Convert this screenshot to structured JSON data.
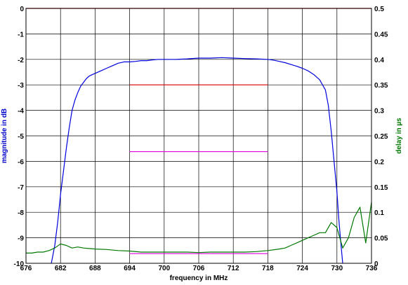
{
  "chart_data": {
    "type": "line",
    "title": "",
    "xlabel": "frequency in MHz",
    "ylabel_left": "magnitude in dB",
    "ylabel_right": "delay in µs",
    "xlim": [
      676,
      736
    ],
    "ylim_left": [
      -10,
      0
    ],
    "ylim_right": [
      0,
      0.5
    ],
    "x_ticks": [
      676,
      682,
      688,
      694,
      700,
      706,
      712,
      718,
      724,
      730,
      736
    ],
    "y_ticks_left": [
      0,
      -1,
      -2,
      -3,
      -4,
      -5,
      -6,
      -7,
      -8,
      -9,
      -10
    ],
    "y_ticks_right": [
      0.5,
      0.45,
      0.4,
      0.35,
      0.3,
      0.25,
      0.2,
      0.15,
      0.1,
      0.05,
      0
    ],
    "grid": true,
    "colors": {
      "magnitude": "#0000dd",
      "delay": "#007700",
      "mask_red": "#dd0000",
      "mask_magenta": "#dd00dd",
      "left_label": "#0000cc",
      "right_label": "#007700"
    },
    "series": [
      {
        "axis": "left",
        "x": [
          680.4,
          681,
          681.5,
          682,
          682.5,
          683,
          683.5,
          684,
          684.5,
          685,
          685.5,
          686,
          686.5,
          687,
          688,
          689,
          690,
          691,
          692,
          693,
          694,
          695,
          696,
          697,
          698,
          699,
          700,
          702,
          704,
          706,
          708,
          710,
          712,
          714,
          716,
          718,
          719,
          720,
          721,
          722,
          723,
          724,
          725,
          726,
          727,
          728,
          728.5,
          729,
          729.5,
          730,
          730.3,
          730.6,
          731
        ],
        "y": [
          -10,
          -9.3,
          -8.4,
          -7.3,
          -6.4,
          -5.5,
          -4.7,
          -4.0,
          -3.6,
          -3.3,
          -3.05,
          -2.9,
          -2.75,
          -2.65,
          -2.55,
          -2.45,
          -2.35,
          -2.25,
          -2.15,
          -2.1,
          -2.1,
          -2.08,
          -2.05,
          -2.05,
          -2.02,
          -2.0,
          -2.0,
          -2.0,
          -1.98,
          -1.95,
          -1.95,
          -1.93,
          -1.95,
          -1.97,
          -1.98,
          -2.0,
          -2.03,
          -2.08,
          -2.13,
          -2.2,
          -2.27,
          -2.35,
          -2.45,
          -2.6,
          -2.8,
          -3.2,
          -3.8,
          -4.8,
          -6.0,
          -7.2,
          -8.2,
          -9.0,
          -10
        ]
      },
      {
        "axis": "right",
        "x": [
          676,
          677,
          678,
          679,
          680,
          681,
          682,
          683,
          684,
          685,
          686,
          688,
          690,
          692,
          694,
          696,
          698,
          700,
          702,
          704,
          706,
          708,
          710,
          712,
          714,
          716,
          718,
          720,
          721,
          722,
          723,
          724,
          725,
          726,
          727,
          728,
          729,
          730,
          731,
          732,
          733,
          734,
          735,
          736
        ],
        "y": [
          0.02,
          0.02,
          0.022,
          0.022,
          0.025,
          0.03,
          0.038,
          0.035,
          0.03,
          0.032,
          0.03,
          0.028,
          0.027,
          0.025,
          0.024,
          0.022,
          0.022,
          0.022,
          0.022,
          0.022,
          0.021,
          0.022,
          0.022,
          0.022,
          0.022,
          0.023,
          0.025,
          0.028,
          0.03,
          0.035,
          0.04,
          0.045,
          0.05,
          0.055,
          0.06,
          0.06,
          0.08,
          0.07,
          0.03,
          0.05,
          0.09,
          0.11,
          0.04,
          0.12
        ]
      }
    ],
    "mask_lines": [
      {
        "axis": "left",
        "x": [
          676,
          736
        ],
        "y": 0,
        "color": "#dd0000"
      },
      {
        "axis": "left",
        "x": [
          694,
          718
        ],
        "y": -3,
        "color": "#dd0000"
      },
      {
        "axis": "left",
        "x": [
          694,
          718
        ],
        "y": -5.62,
        "color": "#dd00dd"
      },
      {
        "axis": "left",
        "x": [
          694,
          718
        ],
        "y": -9.62,
        "color": "#dd00dd"
      }
    ]
  }
}
